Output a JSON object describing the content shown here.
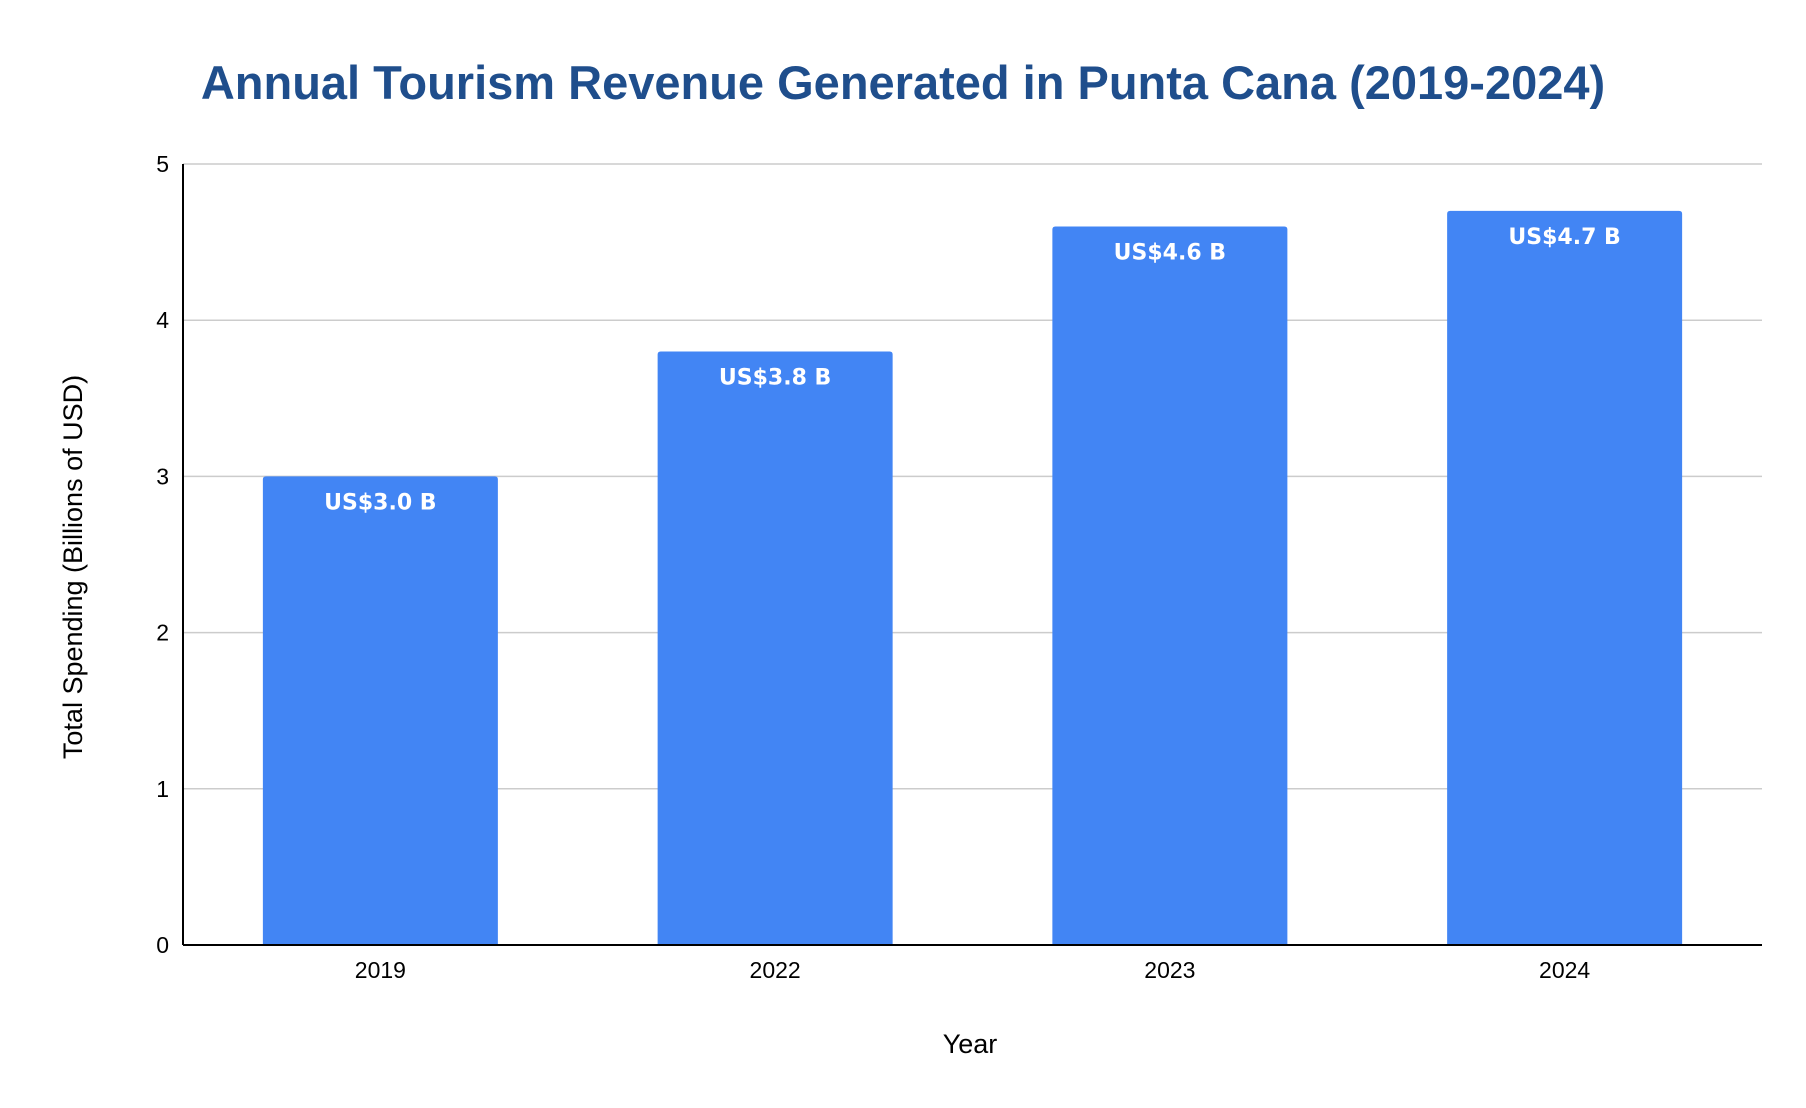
{
  "chart_data": {
    "type": "bar",
    "title": "Annual Tourism Revenue Generated in Punta Cana (2019-2024)",
    "xlabel": "Year",
    "ylabel": "Total Spending (Billions of USD)",
    "categories": [
      "2019",
      "2022",
      "2023",
      "2024"
    ],
    "values": [
      3.0,
      3.8,
      4.6,
      4.7
    ],
    "data_labels": [
      "US$3.0 B",
      "US$3.8 B",
      "US$4.6 B",
      "US$4.7 B"
    ],
    "ylim": [
      0,
      5
    ],
    "yticks": [
      "0",
      "1",
      "2",
      "3",
      "4",
      "5"
    ],
    "grid": true,
    "legend": "none"
  },
  "colors": {
    "bar": "#4285f4",
    "title": "#1f4e8c",
    "grid": "#cccccc",
    "axis": "#000000",
    "label_text": "#ffffff"
  }
}
